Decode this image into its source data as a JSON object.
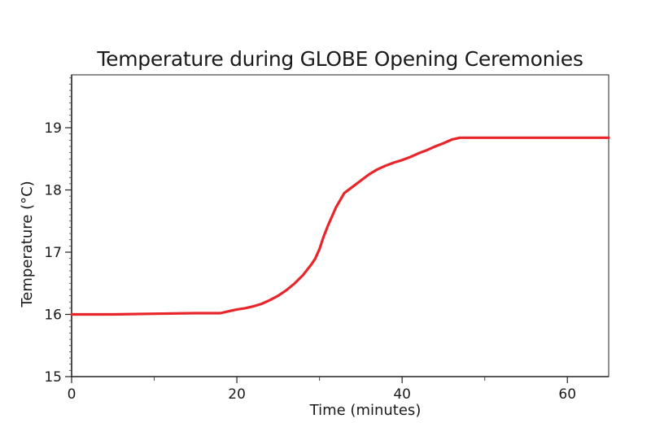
{
  "chart_data": {
    "type": "line",
    "title": "Temperature during GLOBE Opening Ceremonies",
    "xlabel": "Time (minutes)",
    "ylabel": "Temperature (°C)",
    "xlim": [
      0,
      65
    ],
    "ylim": [
      15,
      19.85
    ],
    "x_ticks": [
      0,
      20,
      40,
      60
    ],
    "y_ticks": [
      15,
      16,
      17,
      18,
      19
    ],
    "grid": false,
    "legend": "none",
    "line_color": "#e8262a",
    "series": [
      {
        "x": [
          0,
          5,
          10,
          15,
          18,
          19,
          20,
          21,
          22,
          23,
          24,
          25,
          26,
          27,
          28,
          29,
          29.5,
          30,
          30.5,
          31,
          32,
          33,
          34,
          35,
          36,
          37,
          38,
          39,
          40,
          41,
          42,
          43,
          44,
          45,
          46,
          47,
          48,
          50,
          55,
          60,
          65
        ],
        "y": [
          16.0,
          16.0,
          16.01,
          16.02,
          16.02,
          16.05,
          16.08,
          16.1,
          16.13,
          16.17,
          16.23,
          16.3,
          16.39,
          16.5,
          16.63,
          16.8,
          16.9,
          17.05,
          17.25,
          17.42,
          17.72,
          17.95,
          18.05,
          18.15,
          18.25,
          18.33,
          18.39,
          18.44,
          18.48,
          18.53,
          18.59,
          18.64,
          18.7,
          18.75,
          18.81,
          18.84,
          18.84,
          18.84,
          18.84,
          18.84,
          18.84
        ]
      }
    ]
  }
}
